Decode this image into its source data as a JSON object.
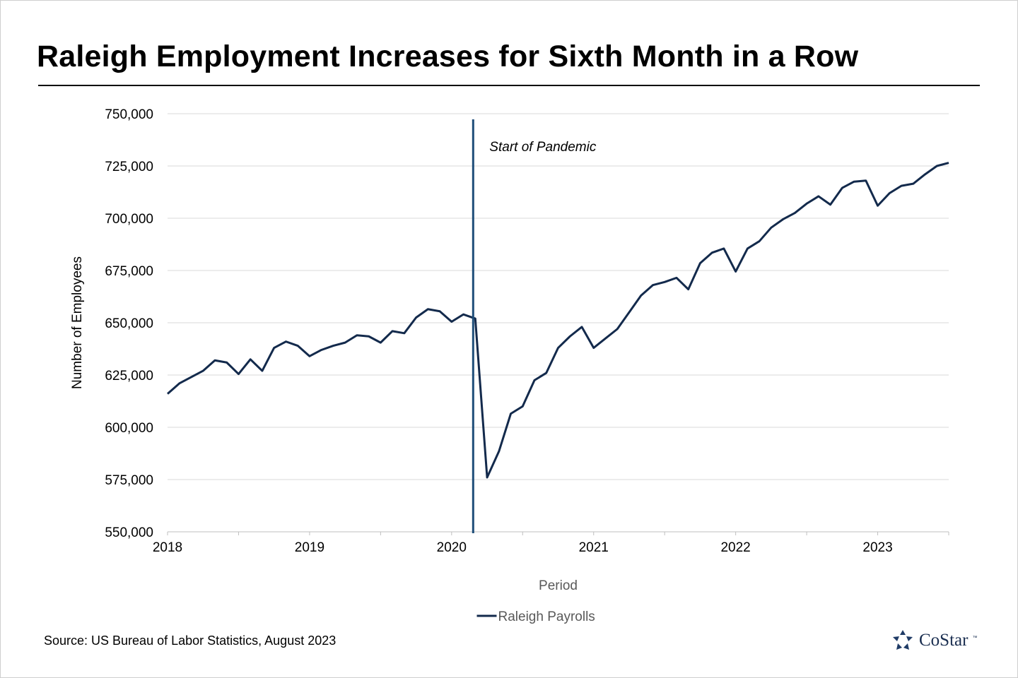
{
  "title": "Raleigh Employment Increases for Sixth Month in a Row",
  "source": "Source: US Bureau of Labor Statistics, August 2023",
  "brand": {
    "name": "CoStar",
    "tm": "™"
  },
  "colors": {
    "line": "#132a4c",
    "marker": "#1f4e79",
    "grid": "#d9d9d9",
    "axis": "#bfbfbf"
  },
  "chart_data": {
    "type": "line",
    "title": "Raleigh Employment Increases for Sixth Month in a Row",
    "xlabel": "Period",
    "ylabel": "Number  of Employees",
    "ylim": [
      550000,
      750000
    ],
    "yticks": [
      550000,
      575000,
      600000,
      625000,
      650000,
      675000,
      700000,
      725000,
      750000
    ],
    "ytick_labels": [
      "550,000",
      "575,000",
      "600,000",
      "625,000",
      "650,000",
      "675,000",
      "700,000",
      "725,000",
      "750,000"
    ],
    "xlim": [
      "2018-01",
      "2023-07"
    ],
    "xtick_labels": [
      "2018",
      "2019",
      "2020",
      "2021",
      "2022",
      "2023"
    ],
    "grid": "horizontal",
    "legend": "bottom-center",
    "annotations": [
      {
        "type": "vertical-line",
        "x": "2020-03",
        "label": "Start of Pandemic"
      }
    ],
    "series": [
      {
        "name": "Raleigh Payrolls",
        "x": [
          "2018-01",
          "2018-02",
          "2018-03",
          "2018-04",
          "2018-05",
          "2018-06",
          "2018-07",
          "2018-08",
          "2018-09",
          "2018-10",
          "2018-11",
          "2018-12",
          "2019-01",
          "2019-02",
          "2019-03",
          "2019-04",
          "2019-05",
          "2019-06",
          "2019-07",
          "2019-08",
          "2019-09",
          "2019-10",
          "2019-11",
          "2019-12",
          "2020-01",
          "2020-02",
          "2020-03",
          "2020-04",
          "2020-05",
          "2020-06",
          "2020-07",
          "2020-08",
          "2020-09",
          "2020-10",
          "2020-11",
          "2020-12",
          "2021-01",
          "2021-02",
          "2021-03",
          "2021-04",
          "2021-05",
          "2021-06",
          "2021-07",
          "2021-08",
          "2021-09",
          "2021-10",
          "2021-11",
          "2021-12",
          "2022-01",
          "2022-02",
          "2022-03",
          "2022-04",
          "2022-05",
          "2022-06",
          "2022-07",
          "2022-08",
          "2022-09",
          "2022-10",
          "2022-11",
          "2022-12",
          "2023-01",
          "2023-02",
          "2023-03",
          "2023-04",
          "2023-05",
          "2023-06",
          "2023-07"
        ],
        "values": [
          616000,
          621000,
          624000,
          627000,
          632000,
          631000,
          625500,
          632500,
          627000,
          638000,
          641000,
          639000,
          634000,
          637000,
          639000,
          640500,
          644000,
          643500,
          640500,
          646000,
          645000,
          652500,
          656500,
          655500,
          650500,
          654000,
          652000,
          576000,
          588500,
          606500,
          610000,
          622500,
          626000,
          638000,
          643500,
          648000,
          638000,
          642500,
          647000,
          655000,
          663000,
          668000,
          669500,
          671500,
          666000,
          678500,
          683500,
          685500,
          674500,
          685500,
          689000,
          695500,
          699500,
          702500,
          707000,
          710500,
          706500,
          714500,
          717500,
          718000,
          706000,
          712000,
          715500,
          716500,
          721000,
          725000,
          726500
        ]
      }
    ]
  }
}
